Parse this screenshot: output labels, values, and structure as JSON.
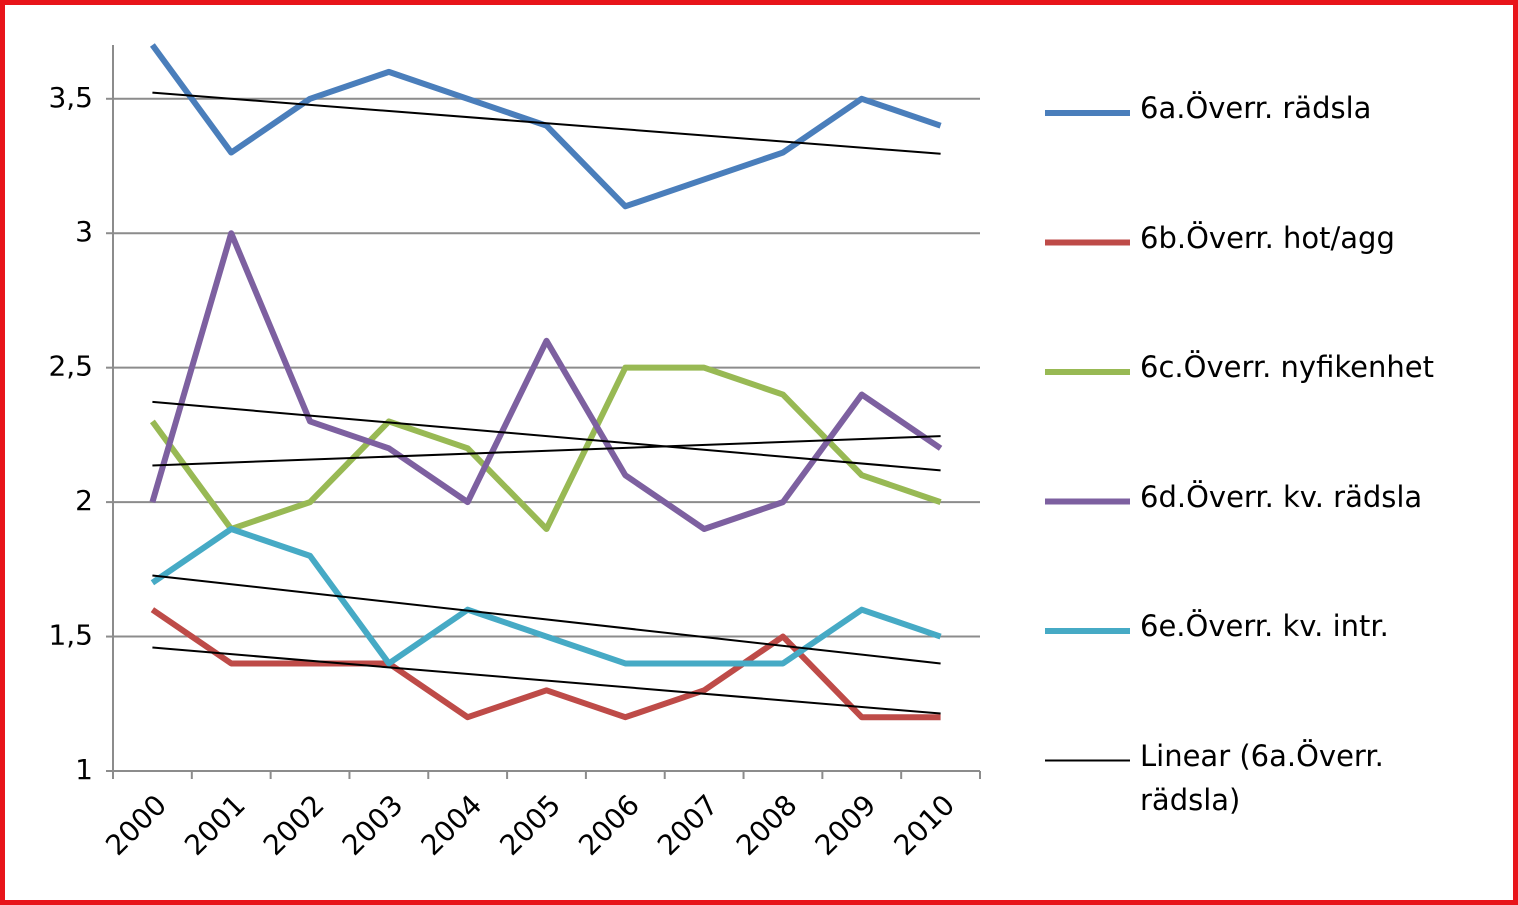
{
  "chart_data": {
    "type": "line",
    "categories": [
      "2000",
      "2001",
      "2002",
      "2003",
      "2004",
      "2005",
      "2006",
      "2007",
      "2008",
      "2009",
      "2010"
    ],
    "series": [
      {
        "name": "6a.Överr. rädsla",
        "color": "#4a7ebb",
        "values": [
          3.7,
          3.3,
          3.5,
          3.6,
          3.5,
          3.4,
          3.1,
          3.2,
          3.3,
          3.5,
          3.4
        ]
      },
      {
        "name": "6b.Överr. hot/agg",
        "color": "#be4b48",
        "values": [
          1.6,
          1.4,
          1.4,
          1.4,
          1.2,
          1.3,
          1.2,
          1.3,
          1.5,
          1.2,
          1.2
        ]
      },
      {
        "name": "6c.Överr. nyfikenhet",
        "color": "#98b954",
        "values": [
          2.3,
          1.9,
          2.0,
          2.3,
          2.2,
          1.9,
          2.5,
          2.5,
          2.4,
          2.1,
          2.0
        ]
      },
      {
        "name": "6d.Överr. kv. rädsla",
        "color": "#7d60a0",
        "values": [
          2.0,
          3.0,
          2.3,
          2.2,
          2.0,
          2.6,
          2.1,
          1.9,
          2.0,
          2.4,
          2.2
        ]
      },
      {
        "name": "6e.Överr. kv. intr.",
        "color": "#46aac5",
        "values": [
          1.7,
          1.9,
          1.8,
          1.4,
          1.6,
          1.5,
          1.4,
          1.4,
          1.4,
          1.6,
          1.5
        ]
      }
    ],
    "trendline": {
      "name": "Linear (6a.Överr. rädsla)",
      "type": "linear",
      "color": "#000000"
    },
    "ylim": [
      1,
      3.7
    ],
    "yticks": [
      1,
      {
        "value": 1.5,
        "label": "1,5"
      },
      2,
      {
        "value": 2.5,
        "label": "2,5"
      },
      3,
      {
        "value": 3.5,
        "label": "3,5"
      }
    ],
    "grid": true,
    "legend": "right"
  }
}
